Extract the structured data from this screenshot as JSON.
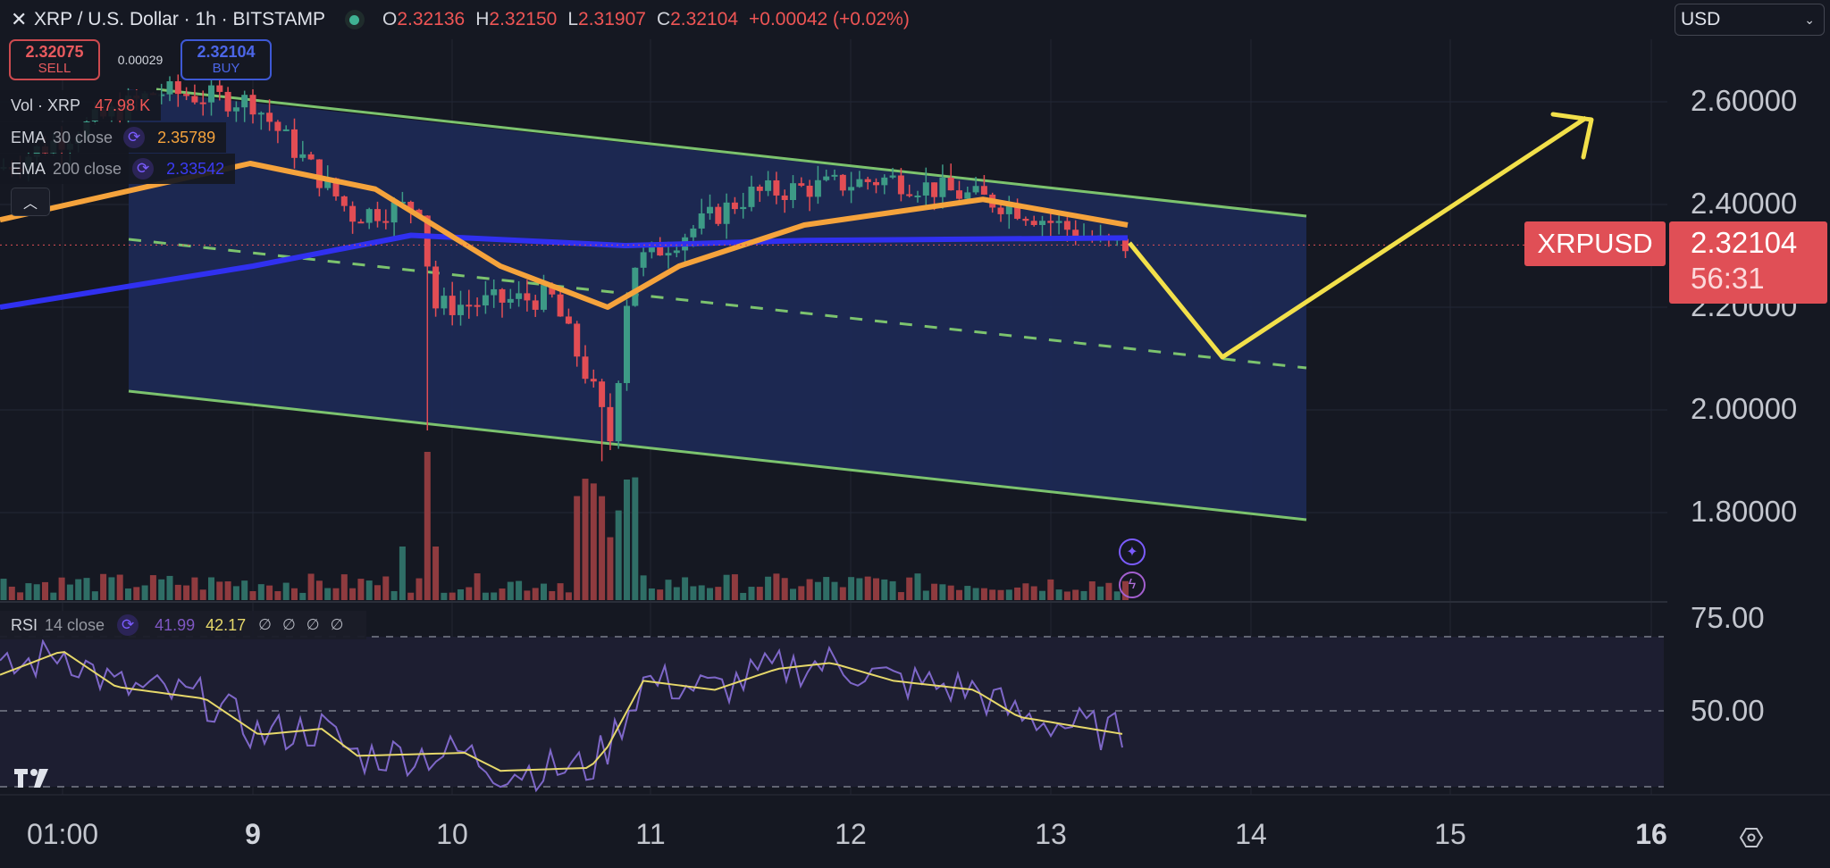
{
  "header": {
    "close_icon": "close-icon",
    "title": "XRP / U.S. Dollar · 1h · BITSTAMP",
    "market_status": "open",
    "ohlc": {
      "o_label": "O",
      "o": "2.32136",
      "h_label": "H",
      "h": "2.32150",
      "l_label": "L",
      "l": "2.31907",
      "c_label": "C",
      "c": "2.32104",
      "change": "+0.00042 (+0.02%)"
    }
  },
  "trade": {
    "sell_price": "2.32075",
    "sell_label": "SELL",
    "spread": "0.00029",
    "buy_price": "2.32104",
    "buy_label": "BUY"
  },
  "legend": {
    "volume": {
      "name": "Vol · XRP",
      "value": "47.98 K",
      "color": "#ef5555"
    },
    "ema30": {
      "name": "EMA",
      "param": "30 close",
      "value": "2.35789",
      "color": "#f5a33c"
    },
    "ema200": {
      "name": "EMA",
      "param": "200 close",
      "value": "2.33542",
      "color": "#3b3bf5"
    },
    "collapse_icon": "chevron-up-icon"
  },
  "currency_select": {
    "value": "USD"
  },
  "price_axis": {
    "labels": [
      "2.60000",
      "2.40000",
      "2.20000",
      "2.00000",
      "1.80000"
    ]
  },
  "last_price": {
    "symbol": "XRPUSD",
    "price": "2.32104",
    "countdown": "56:31"
  },
  "rsi": {
    "name": "RSI",
    "param": "14 close",
    "value": "41.99",
    "ma_value": "42.17",
    "na": [
      "∅",
      "∅",
      "∅",
      "∅"
    ],
    "axis_labels": [
      "75.00",
      "50.00"
    ]
  },
  "time_axis": {
    "labels": [
      "01:00",
      "9",
      "10",
      "11",
      "12",
      "13",
      "14",
      "15",
      "16"
    ]
  },
  "colors": {
    "up": "#3d9a86",
    "down": "#e24d54",
    "channel_line": "#7cc36e",
    "channel_fill": "#1c2954",
    "projection": "#f2e04a",
    "background": "#151822"
  },
  "chart_data": {
    "type": "candlestick",
    "title": "XRP / U.S. Dollar · 1h · BITSTAMP",
    "xlabel": "",
    "ylabel": "USD",
    "x_ticks": [
      "01:00",
      "9",
      "10",
      "11",
      "12",
      "13",
      "14",
      "15",
      "16"
    ],
    "y_ticks": [
      1.8,
      2.0,
      2.2,
      2.4,
      2.6
    ],
    "ylim": [
      1.72,
      2.7
    ],
    "last_price": 2.32104,
    "series": [
      {
        "name": "EMA 30 close",
        "last": 2.35789
      },
      {
        "name": "EMA 200 close",
        "last": 2.33542
      },
      {
        "name": "Vol · XRP",
        "last": "47.98K"
      }
    ],
    "approx_close_path": [
      {
        "x": "9",
        "y": 2.6
      },
      {
        "x": "9.5",
        "y": 2.38
      },
      {
        "x": "9.85",
        "y": 2.4
      },
      {
        "x": "9.9",
        "y": 2.2
      },
      {
        "x": "10.5",
        "y": 2.22
      },
      {
        "x": "10.7",
        "y": 2.05
      },
      {
        "x": "10.8",
        "y": 1.94
      },
      {
        "x": "10.9",
        "y": 2.28
      },
      {
        "x": "11.5",
        "y": 2.42
      },
      {
        "x": "12.2",
        "y": 2.45
      },
      {
        "x": "12.8",
        "y": 2.4
      },
      {
        "x": "13.3",
        "y": 2.32
      }
    ],
    "annotations": {
      "channel": "descending parallel channel (upper ~2.61→2.38, lower ~2.03→1.78, dashed midline)",
      "projection": "yellow path: 2.32 → ~2.10 near day 14 → arrow up to ~2.6 near day 15.7"
    },
    "rsi": {
      "period": 14,
      "value": 41.99,
      "ma": 42.17,
      "levels": [
        30,
        50,
        70
      ]
    }
  }
}
